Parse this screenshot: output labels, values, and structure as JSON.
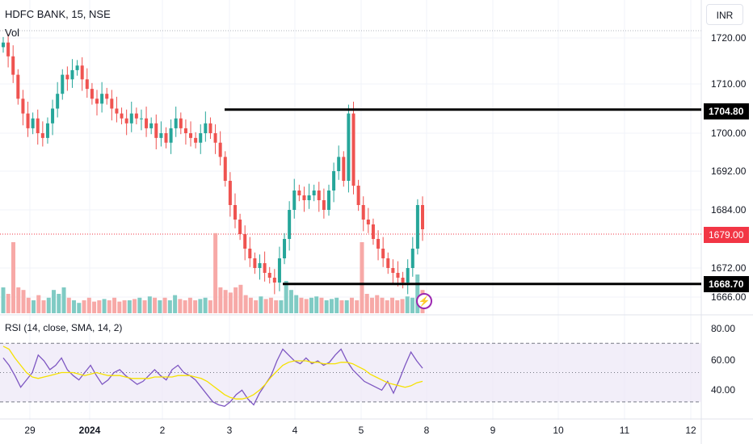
{
  "header": {
    "symbol_title": "HDFC BANK, 15, NSE",
    "volume_label": "Vol",
    "currency": "INR"
  },
  "rsi_panel": {
    "label": "RSI (14, close, SMA, 14, 2)"
  },
  "price_tags": {
    "resistance": "1704.80",
    "current": "1679.00",
    "support": "1668.70"
  },
  "colors": {
    "up": "#26a69a",
    "down": "#ef5350",
    "vol_up": "#80cbc4",
    "vol_down": "#f7a9a7",
    "rsi_line": "#7e57c2",
    "rsi_sma": "#f5e100",
    "rsi_band": "#ede7f6",
    "level_line": "#000000",
    "current_price": "#f23645",
    "flash_icon": "#9c27b0"
  },
  "icons": {
    "flash": "lightning-bolt-icon"
  },
  "chart_data": [
    {
      "type": "candlestick",
      "title": "HDFC BANK, 15, NSE",
      "ylim": [
        1664,
        1724
      ],
      "y_ticks": [
        "1720.00",
        "1710.00",
        "1700.00",
        "1692.00",
        "1684.00",
        "1672.00",
        "1666.00"
      ],
      "x_ticks": [
        "29",
        "2024",
        "2",
        "3",
        "4",
        "5",
        "8",
        "9",
        "10",
        "11",
        "12"
      ],
      "grid": true,
      "horizontal_levels": [
        {
          "value": 1704.8,
          "label": "1704.80",
          "from_session": "3"
        },
        {
          "value": 1668.7,
          "label": "1668.70",
          "from_session": "4"
        }
      ],
      "last_price": 1679.0,
      "close_series_by_session": [
        {
          "session": "29",
          "closes": [
            1719,
            1716,
            1712,
            1707,
            1704,
            1701,
            1703,
            1700,
            1699,
            1702,
            1705,
            1708,
            1712,
            1711
          ]
        },
        {
          "session": "2024",
          "closes": [
            1713,
            1714,
            1711,
            1709,
            1707,
            1706,
            1708,
            1707,
            1705,
            1704,
            1703,
            1702,
            1704,
            1703
          ]
        },
        {
          "session": "2",
          "closes": [
            1703,
            1701,
            1702,
            1699,
            1700,
            1698,
            1701,
            1703,
            1701,
            1700,
            1699,
            1698,
            1700,
            1702
          ]
        },
        {
          "session": "3",
          "closes": [
            1700,
            1698,
            1695,
            1690,
            1685,
            1682,
            1679,
            1676,
            1674,
            1672,
            1673,
            1671,
            1670,
            1669
          ]
        },
        {
          "session": "4",
          "closes": [
            1674,
            1678,
            1684,
            1688,
            1687,
            1686,
            1687,
            1688,
            1686,
            1684,
            1688,
            1692,
            1695,
            1690
          ]
        },
        {
          "session": "5",
          "closes": [
            1704,
            1689,
            1685,
            1682,
            1681,
            1678,
            1676,
            1674,
            1672,
            1671,
            1670,
            1669,
            1672,
            1676
          ]
        },
        {
          "session": "8",
          "closes": [
            1685,
            1680
          ]
        }
      ],
      "volume": {
        "label": "Vol",
        "relative_levels": [
          0.2,
          0.15,
          0.55,
          0.2,
          0.18,
          0.12,
          0.1,
          0.14,
          0.1,
          0.12,
          0.18,
          0.15,
          0.2,
          0.12,
          0.1,
          0.08,
          0.1,
          0.12,
          0.09,
          0.1,
          0.11,
          0.1,
          0.12,
          0.09,
          0.1,
          0.1,
          0.11,
          0.12,
          0.1,
          0.13,
          0.12,
          0.1,
          0.12,
          0.1,
          0.14,
          0.11,
          0.1,
          0.12,
          0.1,
          0.11,
          0.12,
          0.1,
          0.62,
          0.2,
          0.18,
          0.16,
          0.2,
          0.22,
          0.14,
          0.12,
          0.1,
          0.13,
          0.11,
          0.12,
          0.1,
          0.1,
          0.25,
          0.18,
          0.14,
          0.12,
          0.11,
          0.12,
          0.13,
          0.12,
          0.1,
          0.11,
          0.12,
          0.1,
          0.1,
          0.12,
          0.1,
          0.55,
          0.15,
          0.12,
          0.14,
          0.12,
          0.1,
          0.12,
          0.1,
          0.11,
          0.13,
          0.12,
          0.3,
          0.18
        ]
      }
    },
    {
      "type": "line",
      "title": "RSI (14, close, SMA, 14, 2)",
      "ylim": [
        20,
        85
      ],
      "y_ticks": [
        "80.00",
        "60.00",
        "40.00"
      ],
      "bands": [
        70,
        50,
        30
      ],
      "series": [
        {
          "name": "RSI",
          "values": [
            60,
            55,
            48,
            40,
            45,
            50,
            62,
            58,
            52,
            55,
            60,
            52,
            48,
            45,
            50,
            55,
            48,
            42,
            45,
            50,
            52,
            48,
            45,
            42,
            44,
            48,
            52,
            48,
            45,
            52,
            55,
            50,
            48,
            45,
            40,
            35,
            30,
            28,
            27,
            30,
            35,
            38,
            32,
            28,
            36,
            42,
            48,
            58,
            66,
            62,
            58,
            56,
            60,
            56,
            58,
            55,
            57,
            62,
            66,
            58,
            52,
            48,
            44,
            42,
            40,
            38,
            44,
            36,
            45,
            55,
            64,
            58,
            53
          ]
        },
        {
          "name": "RSI-based MA",
          "values": [
            68,
            66,
            60,
            55,
            50,
            47,
            46,
            47,
            48,
            49,
            50,
            50,
            50,
            49,
            48,
            49,
            50,
            49,
            48,
            48,
            48,
            47,
            46,
            46,
            46,
            46,
            47,
            47,
            47,
            47,
            48,
            48,
            48,
            47,
            46,
            44,
            41,
            38,
            35,
            33,
            32,
            32,
            33,
            35,
            38,
            42,
            47,
            51,
            55,
            57,
            58,
            58,
            58,
            57,
            57,
            56,
            56,
            56,
            57,
            57,
            56,
            54,
            52,
            49,
            47,
            45,
            43,
            42,
            41,
            40,
            41,
            43,
            44
          ]
        }
      ]
    }
  ]
}
